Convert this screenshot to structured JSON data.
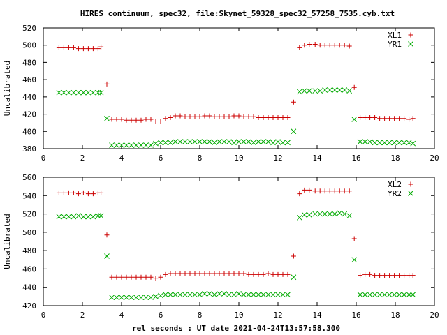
{
  "title": "HIRES continuum, spec32, file:Skynet_59328_spec32_57258_7535.cyb.txt",
  "xlabel": "rel seconds : UT date 2021-04-24T13:57:58.300",
  "colors": {
    "red": "#cc0000",
    "green": "#00aa00"
  },
  "chart_data": [
    {
      "type": "scatter",
      "ylabel": "Uncalibrated",
      "xlim": [
        0,
        20
      ],
      "ylim": [
        380,
        520
      ],
      "xticks": [
        0,
        2,
        4,
        6,
        8,
        10,
        12,
        14,
        16,
        18,
        20
      ],
      "yticks": [
        380,
        400,
        420,
        440,
        460,
        480,
        500,
        520
      ],
      "legend_position": "top-right",
      "series": [
        {
          "name": "XL1",
          "marker": "plus",
          "color": "#cc0000",
          "x": [
            0.8,
            1.05,
            1.3,
            1.55,
            1.8,
            2.05,
            2.3,
            2.55,
            2.8,
            2.95,
            3.25,
            3.5,
            3.75,
            4.0,
            4.25,
            4.5,
            4.75,
            5.0,
            5.25,
            5.5,
            5.75,
            6.0,
            6.25,
            6.5,
            6.75,
            7.0,
            7.25,
            7.5,
            7.75,
            8.0,
            8.25,
            8.5,
            8.75,
            9.0,
            9.25,
            9.5,
            9.75,
            10.0,
            10.25,
            10.5,
            10.75,
            11.0,
            11.25,
            11.5,
            11.75,
            12.0,
            12.25,
            12.5,
            12.8,
            13.1,
            13.35,
            13.6,
            13.9,
            14.15,
            14.4,
            14.65,
            14.9,
            15.15,
            15.4,
            15.65,
            15.9,
            16.2,
            16.45,
            16.7,
            16.95,
            17.2,
            17.45,
            17.7,
            17.95,
            18.2,
            18.45,
            18.7,
            18.9
          ],
          "y": [
            497,
            497,
            497,
            497,
            496,
            496,
            496,
            496,
            496,
            498,
            455,
            414,
            414,
            414,
            413,
            413,
            413,
            413,
            414,
            414,
            412,
            412,
            415,
            416,
            418,
            418,
            417,
            417,
            417,
            417,
            418,
            418,
            417,
            417,
            417,
            417,
            418,
            418,
            417,
            417,
            417,
            416,
            416,
            416,
            416,
            416,
            416,
            416,
            434,
            497,
            500,
            501,
            501,
            500,
            500,
            500,
            500,
            500,
            500,
            499,
            451,
            416,
            416,
            416,
            416,
            415,
            415,
            415,
            415,
            415,
            415,
            414,
            415
          ]
        },
        {
          "name": "YR1",
          "marker": "cross",
          "color": "#00aa00",
          "x": [
            0.8,
            1.05,
            1.3,
            1.55,
            1.8,
            2.05,
            2.3,
            2.55,
            2.8,
            2.95,
            3.25,
            3.5,
            3.75,
            4.0,
            4.25,
            4.5,
            4.75,
            5.0,
            5.25,
            5.5,
            5.75,
            6.0,
            6.25,
            6.5,
            6.75,
            7.0,
            7.25,
            7.5,
            7.75,
            8.0,
            8.25,
            8.5,
            8.75,
            9.0,
            9.25,
            9.5,
            9.75,
            10.0,
            10.25,
            10.5,
            10.75,
            11.0,
            11.25,
            11.5,
            11.75,
            12.0,
            12.25,
            12.5,
            12.8,
            13.1,
            13.35,
            13.6,
            13.9,
            14.15,
            14.4,
            14.65,
            14.9,
            15.15,
            15.4,
            15.65,
            15.9,
            16.2,
            16.45,
            16.7,
            16.95,
            17.2,
            17.45,
            17.7,
            17.95,
            18.2,
            18.45,
            18.7,
            18.9
          ],
          "y": [
            445,
            445,
            445,
            445,
            445,
            445,
            445,
            445,
            445,
            445,
            415,
            384,
            384,
            384,
            384,
            384,
            384,
            384,
            384,
            384,
            386,
            387,
            387,
            387,
            388,
            388,
            388,
            388,
            388,
            388,
            388,
            388,
            387,
            388,
            388,
            388,
            387,
            388,
            388,
            388,
            387,
            388,
            388,
            388,
            387,
            388,
            387,
            387,
            400,
            446,
            447,
            447,
            447,
            447,
            448,
            448,
            448,
            448,
            448,
            447,
            414,
            388,
            388,
            388,
            387,
            387,
            387,
            387,
            387,
            387,
            387,
            387,
            386
          ]
        }
      ]
    },
    {
      "type": "scatter",
      "ylabel": "Uncalibrated",
      "xlim": [
        0,
        20
      ],
      "ylim": [
        420,
        560
      ],
      "xticks": [
        0,
        2,
        4,
        6,
        8,
        10,
        12,
        14,
        16,
        18,
        20
      ],
      "yticks": [
        420,
        440,
        460,
        480,
        500,
        520,
        540,
        560
      ],
      "legend_position": "top-right",
      "series": [
        {
          "name": "XL2",
          "marker": "plus",
          "color": "#cc0000",
          "x": [
            0.8,
            1.05,
            1.3,
            1.55,
            1.8,
            2.05,
            2.3,
            2.55,
            2.8,
            2.95,
            3.25,
            3.5,
            3.75,
            4.0,
            4.25,
            4.5,
            4.75,
            5.0,
            5.25,
            5.5,
            5.75,
            6.0,
            6.25,
            6.5,
            6.75,
            7.0,
            7.25,
            7.5,
            7.75,
            8.0,
            8.25,
            8.5,
            8.75,
            9.0,
            9.25,
            9.5,
            9.75,
            10.0,
            10.25,
            10.5,
            10.75,
            11.0,
            11.25,
            11.5,
            11.75,
            12.0,
            12.25,
            12.5,
            12.8,
            13.1,
            13.35,
            13.6,
            13.9,
            14.15,
            14.4,
            14.65,
            14.9,
            15.15,
            15.4,
            15.65,
            15.9,
            16.2,
            16.45,
            16.7,
            16.95,
            17.2,
            17.45,
            17.7,
            17.95,
            18.2,
            18.45,
            18.7,
            18.9
          ],
          "y": [
            543,
            543,
            543,
            543,
            542,
            543,
            542,
            542,
            543,
            543,
            497,
            451,
            451,
            451,
            451,
            451,
            451,
            451,
            451,
            451,
            450,
            451,
            454,
            455,
            455,
            455,
            455,
            455,
            455,
            455,
            455,
            455,
            455,
            455,
            455,
            455,
            455,
            455,
            455,
            454,
            454,
            454,
            454,
            455,
            454,
            454,
            454,
            454,
            474,
            542,
            546,
            546,
            545,
            545,
            545,
            545,
            545,
            545,
            545,
            545,
            493,
            453,
            454,
            454,
            453,
            453,
            453,
            453,
            453,
            453,
            453,
            453,
            453
          ]
        },
        {
          "name": "YR2",
          "marker": "cross",
          "color": "#00aa00",
          "x": [
            0.8,
            1.05,
            1.3,
            1.55,
            1.8,
            2.05,
            2.3,
            2.55,
            2.8,
            2.95,
            3.25,
            3.5,
            3.75,
            4.0,
            4.25,
            4.5,
            4.75,
            5.0,
            5.25,
            5.5,
            5.75,
            6.0,
            6.25,
            6.5,
            6.75,
            7.0,
            7.25,
            7.5,
            7.75,
            8.0,
            8.25,
            8.5,
            8.75,
            9.0,
            9.25,
            9.5,
            9.75,
            10.0,
            10.25,
            10.5,
            10.75,
            11.0,
            11.25,
            11.5,
            11.75,
            12.0,
            12.25,
            12.5,
            12.8,
            13.1,
            13.35,
            13.6,
            13.9,
            14.15,
            14.4,
            14.65,
            14.9,
            15.15,
            15.4,
            15.65,
            15.9,
            16.2,
            16.45,
            16.7,
            16.95,
            17.2,
            17.45,
            17.7,
            17.95,
            18.2,
            18.45,
            18.7,
            18.9
          ],
          "y": [
            517,
            517,
            517,
            517,
            518,
            517,
            517,
            517,
            518,
            518,
            474,
            429,
            429,
            429,
            429,
            429,
            429,
            429,
            429,
            429,
            430,
            431,
            432,
            432,
            432,
            432,
            432,
            432,
            432,
            432,
            433,
            433,
            432,
            433,
            433,
            432,
            432,
            433,
            432,
            432,
            432,
            432,
            432,
            432,
            432,
            432,
            432,
            432,
            451,
            516,
            519,
            519,
            520,
            520,
            520,
            520,
            520,
            521,
            520,
            518,
            470,
            432,
            432,
            432,
            432,
            432,
            432,
            432,
            432,
            432,
            432,
            432,
            432
          ]
        }
      ]
    }
  ]
}
